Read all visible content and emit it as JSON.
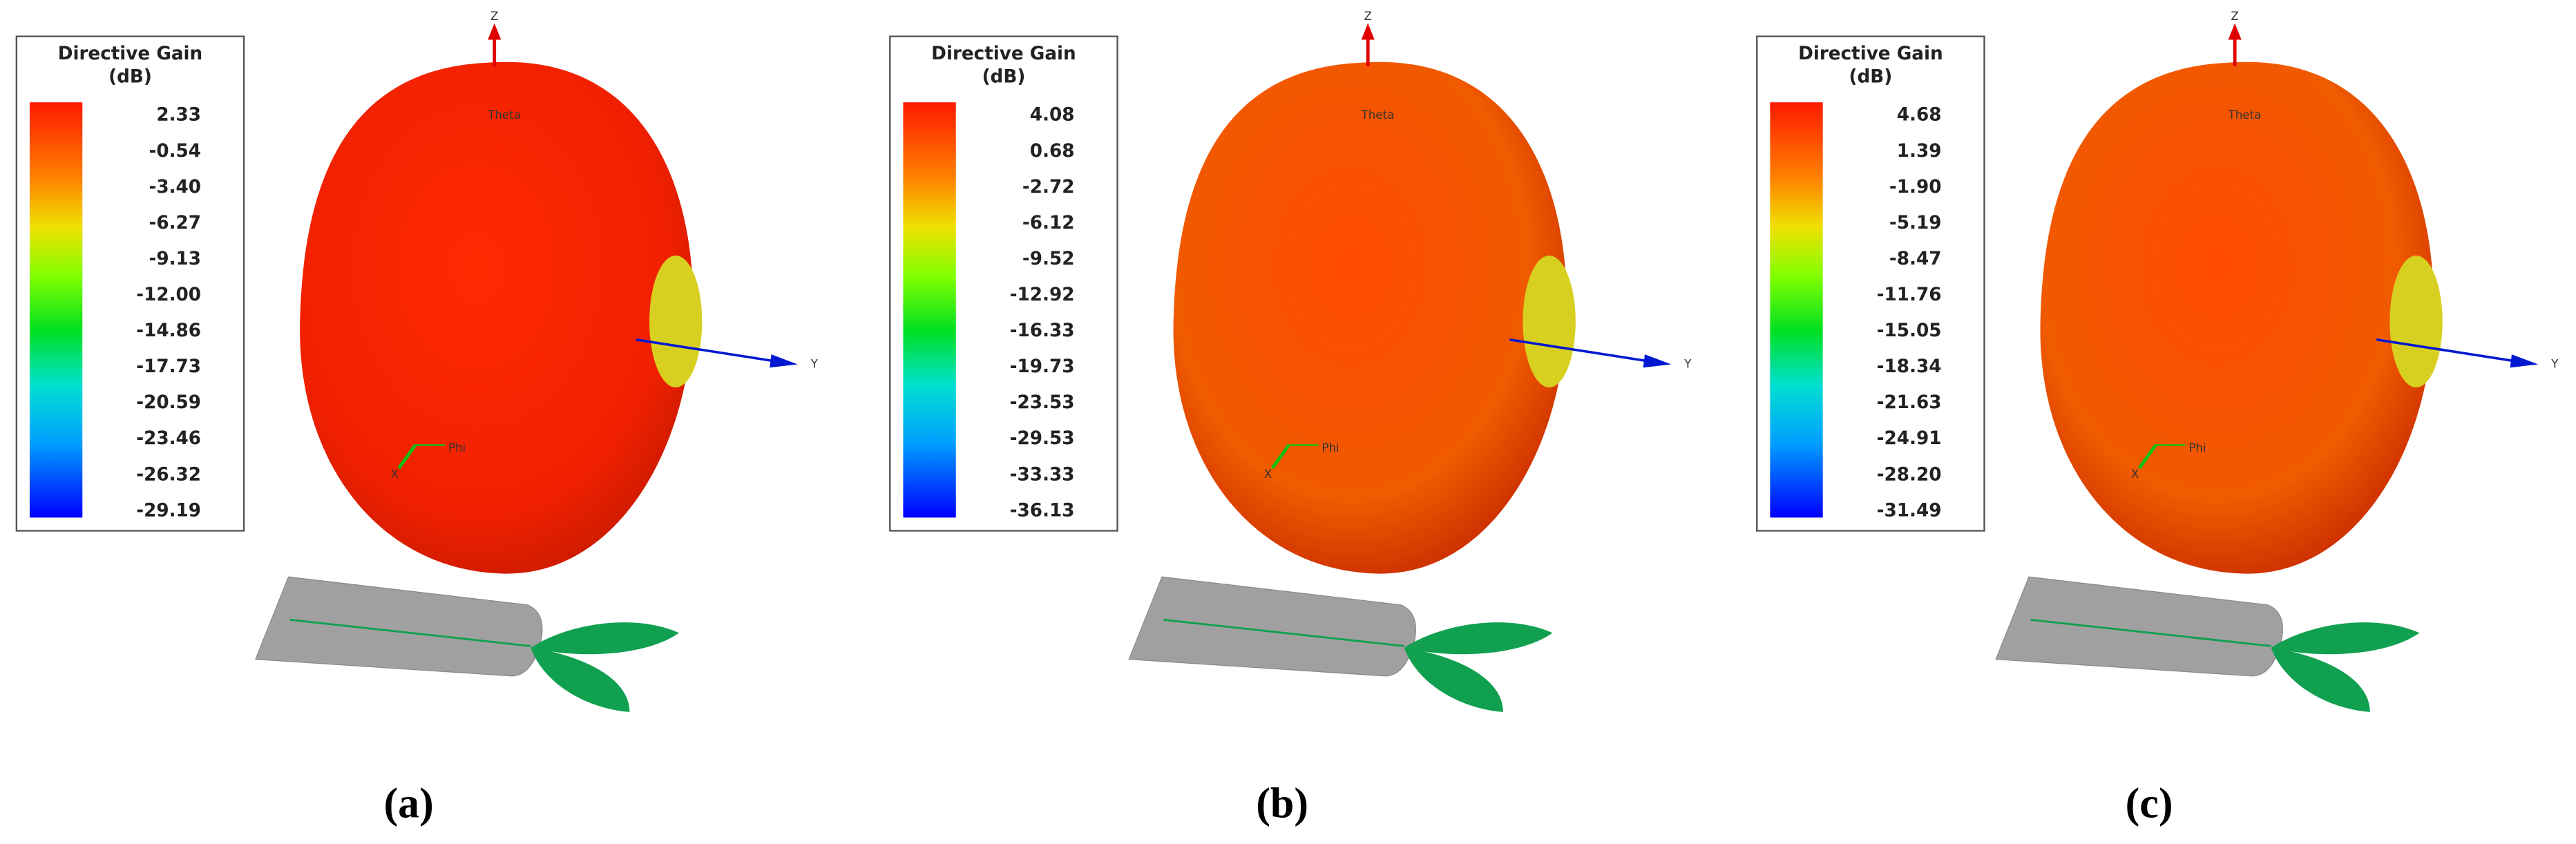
{
  "panels": [
    {
      "legend_title": "Directive Gain",
      "legend_unit": "(dB)",
      "levels": [
        "2.33",
        "-0.54",
        "-3.40",
        "-6.27",
        "-9.13",
        "-12.00",
        "-14.86",
        "-17.73",
        "-20.59",
        "-23.46",
        "-26.32",
        "-29.19"
      ],
      "axes": {
        "z": "Z",
        "y": "Y",
        "theta": "Theta",
        "phi": "Phi",
        "x": "X"
      },
      "caption": "(a)"
    },
    {
      "legend_title": "Directive Gain",
      "legend_unit": "(dB)",
      "levels": [
        "4.08",
        "0.68",
        "-2.72",
        "-6.12",
        "-9.52",
        "-12.92",
        "-16.33",
        "-19.73",
        "-23.53",
        "-29.53",
        "-33.33",
        "-36.13"
      ],
      "axes": {
        "z": "Z",
        "y": "Y",
        "theta": "Theta",
        "phi": "Phi",
        "x": "X"
      },
      "caption": "(b)"
    },
    {
      "legend_title": "Directive Gain",
      "legend_unit": "(dB)",
      "levels": [
        "4.68",
        "1.39",
        "-1.90",
        "-5.19",
        "-8.47",
        "-11.76",
        "-15.05",
        "-18.34",
        "-21.63",
        "-24.91",
        "-28.20",
        "-31.49"
      ],
      "axes": {
        "z": "Z",
        "y": "Y",
        "theta": "Theta",
        "phi": "Phi",
        "x": "X"
      },
      "caption": "(c)"
    }
  ]
}
